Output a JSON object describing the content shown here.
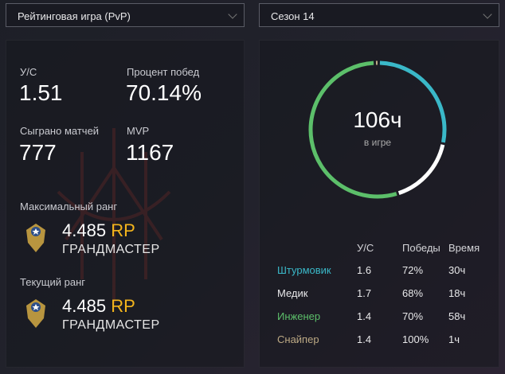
{
  "left_dropdown": {
    "value": "Рейтинговая игра (PvP)"
  },
  "right_dropdown": {
    "value": "Сезон 14"
  },
  "stats": {
    "kd_label": "У/С",
    "kd": "1.51",
    "winrate_label": "Процент побед",
    "winrate": "70.14%",
    "matches_label": "Сыграно матчей",
    "matches": "777",
    "mvp_label": "MVP",
    "mvp": "1167"
  },
  "max_rank": {
    "label": "Максимальный ранг",
    "value": "4.485",
    "unit": "RP",
    "name": "ГРАНДМАСТЕР"
  },
  "current_rank": {
    "label": "Текущий ранг",
    "value": "4.485",
    "unit": "RP",
    "name": "ГРАНДМАСТЕР"
  },
  "playtime": {
    "value": "106ч",
    "label": "в игре"
  },
  "class_table": {
    "headers": [
      "У/С",
      "Победы",
      "Время"
    ],
    "rows": [
      {
        "name": "Штурмовик",
        "kd": "1.6",
        "wins": "72%",
        "time": "30ч",
        "hours": 30,
        "color": "#3ab8c8"
      },
      {
        "name": "Медик",
        "kd": "1.7",
        "wins": "68%",
        "time": "18ч",
        "hours": 18,
        "color": "#ffffff"
      },
      {
        "name": "Инженер",
        "kd": "1.4",
        "wins": "70%",
        "time": "58ч",
        "hours": 58,
        "color": "#5cbf6a"
      },
      {
        "name": "Снайпер",
        "kd": "1.4",
        "wins": "100%",
        "time": "1ч",
        "hours": 1,
        "color": "#bca984"
      }
    ]
  },
  "colors": {
    "accent_rp": "#f4b51c"
  }
}
